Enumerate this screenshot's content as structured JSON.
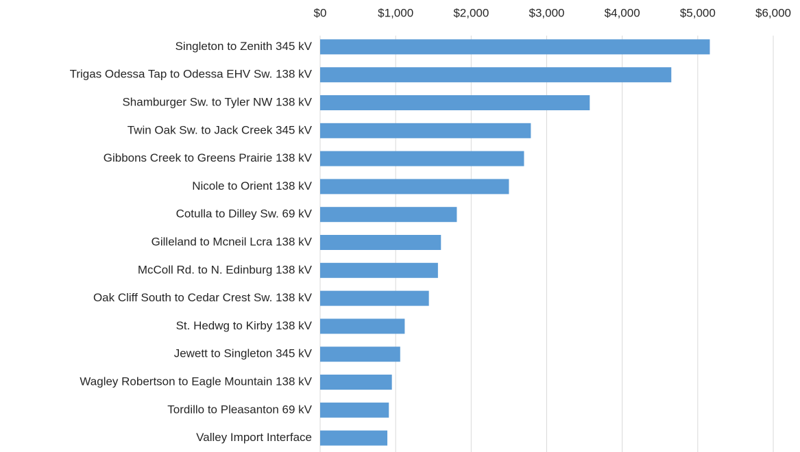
{
  "chart_data": {
    "type": "bar",
    "orientation": "horizontal",
    "categories": [
      "Singleton to Zenith 345 kV",
      "Trigas Odessa Tap to Odessa EHV Sw. 138 kV",
      "Shamburger Sw. to Tyler NW 138 kV",
      "Twin Oak Sw. to Jack Creek 345 kV",
      "Gibbons Creek to Greens Prairie 138 kV",
      "Nicole to Orient 138 kV",
      "Cotulla to Dilley Sw. 69 kV",
      "Gilleland to Mcneil Lcra 138 kV",
      "McColl Rd. to N. Edinburg 138 kV",
      "Oak Cliff South to Cedar Crest Sw. 138 kV",
      "St. Hedwg to Kirby 138 kV",
      "Jewett to Singleton 345 kV",
      "Wagley Robertson to Eagle Mountain 138 kV",
      "Tordillo to Pleasanton 69 kV",
      "Valley Import Interface"
    ],
    "values": [
      5160,
      4650,
      3570,
      2790,
      2700,
      2500,
      1810,
      1600,
      1560,
      1440,
      1120,
      1060,
      950,
      910,
      890
    ],
    "color": "#5b9bd5",
    "xlim": [
      0,
      6000
    ],
    "xticks": [
      {
        "value": 0,
        "label": "$0"
      },
      {
        "value": 1000,
        "label": "$1,000"
      },
      {
        "value": 2000,
        "label": "$2,000"
      },
      {
        "value": 3000,
        "label": "$3,000"
      },
      {
        "value": 4000,
        "label": "$4,000"
      },
      {
        "value": 5000,
        "label": "$5,000"
      },
      {
        "value": 6000,
        "label": "$6,000"
      }
    ],
    "grid": true
  }
}
